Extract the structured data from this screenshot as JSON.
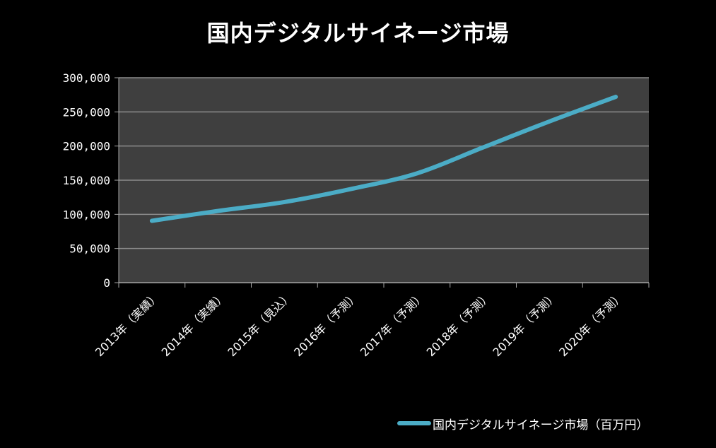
{
  "chart_data": {
    "type": "line",
    "title": "国内デジタルサイネージ市場",
    "categories": [
      "2013年（実績）",
      "2014年（実績）",
      "2015年（見込）",
      "2016年（予測）",
      "2017年（予測）",
      "2018年（予測）",
      "2019年（予測）",
      "2020年（予測）"
    ],
    "series": [
      {
        "name": "国内デジタルサイネージ市場（百万円）",
        "values": [
          90500,
          105000,
          118000,
          137000,
          160000,
          198000,
          236000,
          272000
        ],
        "color": "#4bacc6"
      }
    ],
    "ylim": [
      0,
      300000
    ],
    "yticks": [
      0,
      50000,
      100000,
      150000,
      200000,
      250000,
      300000
    ],
    "ytick_labels": [
      "0",
      "50,000",
      "100,000",
      "150,000",
      "200,000",
      "250,000",
      "300,000"
    ],
    "xlabel": "",
    "ylabel": "",
    "grid": true,
    "legend_position": "bottom-right",
    "colors": {
      "background": "#000000",
      "plot_area": "#3f3f3f",
      "gridline": "#8c8c8c",
      "text": "#ffffff"
    }
  }
}
